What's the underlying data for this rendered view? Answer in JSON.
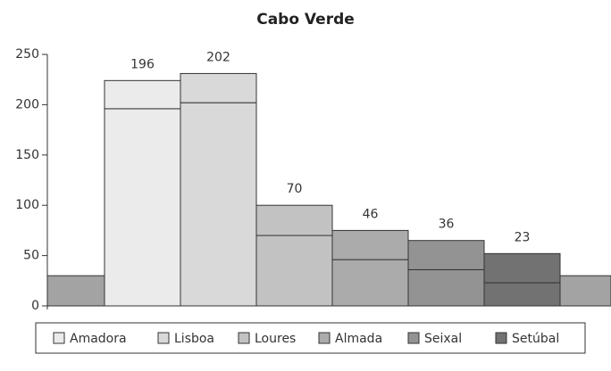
{
  "chart_data": {
    "type": "stacked-bar",
    "title": "Cabo Verde",
    "categories": [
      "Amadora",
      "Lisboa",
      "Loures",
      "Almada",
      "Seixal",
      "Setúbal"
    ],
    "values": [
      196,
      202,
      70,
      46,
      36,
      23
    ],
    "upper_values": [
      28,
      29,
      30,
      29,
      29,
      29
    ],
    "edge_values": [
      30,
      30
    ],
    "colors": [
      "#ebebeb",
      "#d9d9d9",
      "#c2c2c2",
      "#ababab",
      "#939393",
      "#727272"
    ],
    "edge_color": "#a3a3a3",
    "ylim": [
      0,
      250
    ],
    "yticks": [
      0,
      50,
      100,
      150,
      200,
      250
    ],
    "grid": false
  }
}
